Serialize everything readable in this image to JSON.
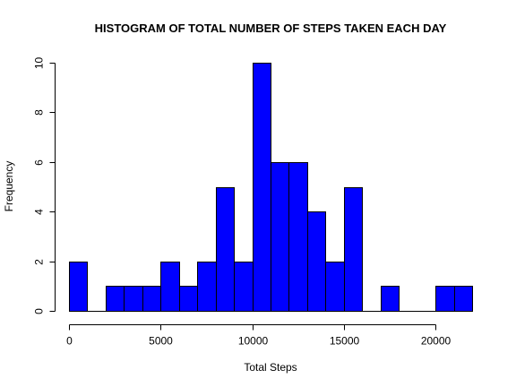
{
  "chart_data": {
    "type": "bar",
    "title": "HISTOGRAM OF TOTAL NUMBER OF STEPS TAKEN EACH DAY",
    "xlabel": "Total Steps",
    "ylabel": "Frequency",
    "bin_width": 1000,
    "bin_starts": [
      0,
      1000,
      2000,
      3000,
      4000,
      5000,
      6000,
      7000,
      8000,
      9000,
      10000,
      11000,
      12000,
      13000,
      14000,
      15000,
      16000,
      17000,
      18000,
      19000,
      20000,
      21000
    ],
    "values": [
      2,
      0,
      1,
      1,
      1,
      2,
      1,
      2,
      5,
      2,
      10,
      6,
      6,
      4,
      2,
      5,
      0,
      1,
      0,
      0,
      1,
      1
    ],
    "xlim": [
      0,
      22000
    ],
    "ylim": [
      0,
      10
    ],
    "xticks": [
      0,
      5000,
      10000,
      15000,
      20000
    ],
    "yticks": [
      0,
      2,
      4,
      6,
      8,
      10
    ],
    "bar_color": "#0000ff",
    "grid": false
  }
}
